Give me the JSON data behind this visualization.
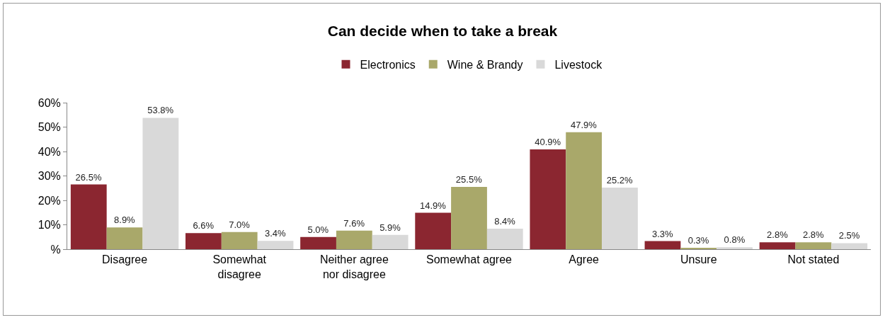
{
  "chart_data": {
    "type": "bar",
    "title": "Can decide when to take a break",
    "categories": [
      "Disagree",
      "Somewhat disagree",
      "Neither agree nor disagree",
      "Somewhat agree",
      "Agree",
      "Unsure",
      "Not stated"
    ],
    "series": [
      {
        "name": "Electronics",
        "color": "#8b2630",
        "values": [
          26.5,
          6.6,
          5.0,
          14.9,
          40.9,
          3.3,
          2.8
        ],
        "value_labels": [
          "26.5%",
          "6.6%",
          "5.0%",
          "14.9%",
          "40.9%",
          "3.3%",
          "2.8%"
        ]
      },
      {
        "name": "Wine & Brandy",
        "color": "#a9a86a",
        "values": [
          8.9,
          7.0,
          7.6,
          25.5,
          47.9,
          0.3,
          2.8
        ],
        "value_labels": [
          "8.9%",
          "7.0%",
          "7.6%",
          "25.5%",
          "47.9%",
          "0.3%",
          "2.8%"
        ]
      },
      {
        "name": "Livestock",
        "color": "#d9d9d9",
        "values": [
          53.8,
          3.4,
          5.9,
          8.4,
          25.2,
          0.8,
          2.5
        ],
        "value_labels": [
          "53.8%",
          "3.4%",
          "5.9%",
          "8.4%",
          "25.2%",
          "0.8%",
          "2.5%"
        ]
      }
    ],
    "ylim": [
      0,
      60
    ],
    "yticks": [
      {
        "value": 0,
        "label": "%"
      },
      {
        "value": 10,
        "label": "10%"
      },
      {
        "value": 20,
        "label": "20%"
      },
      {
        "value": 30,
        "label": "30%"
      },
      {
        "value": 40,
        "label": "40%"
      },
      {
        "value": 50,
        "label": "50%"
      },
      {
        "value": 60,
        "label": "60%"
      }
    ],
    "grid": false,
    "legend": "top"
  }
}
